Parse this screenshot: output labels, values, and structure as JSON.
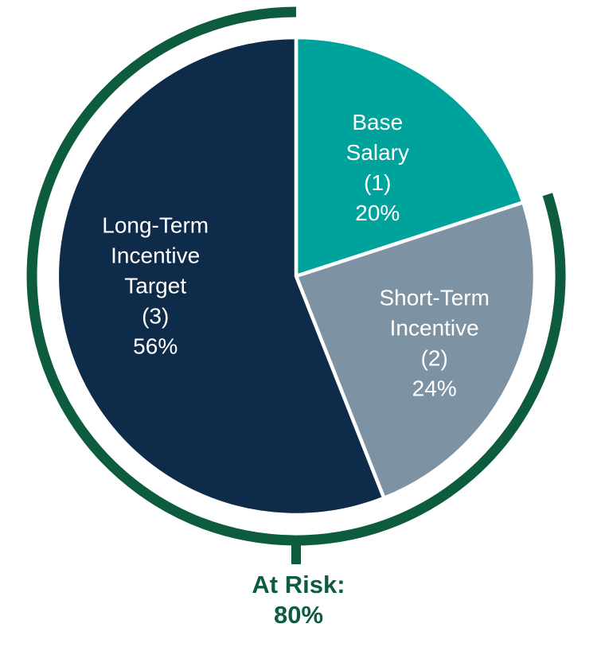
{
  "chart_data": {
    "type": "pie",
    "title": "",
    "start_angle_deg": 0,
    "direction": "clockwise",
    "slice_border_color": "#ffffff",
    "slices": [
      {
        "name": "Base Salary (1)",
        "value": 20,
        "color": "#00a39b",
        "label_lines": [
          "Base",
          "Salary",
          "(1)",
          "20%"
        ]
      },
      {
        "name": "Short-Term Incentive (2)",
        "value": 24,
        "color": "#7d92a3",
        "label_lines": [
          "Short-Term",
          "Incentive",
          "(2)",
          "24%"
        ]
      },
      {
        "name": "Long-Term Incentive Target (3)",
        "value": 56,
        "color": "#0e2b4a",
        "label_lines": [
          "Long-Term",
          "Incentive",
          "Target",
          "(3)",
          "56%"
        ]
      }
    ],
    "annotation_arc": {
      "covers_slices": [
        "Short-Term Incentive (2)",
        "Long-Term Incentive Target (3)"
      ],
      "span_percent": 80,
      "color": "#0d5c3e",
      "label_lines": [
        "At Risk:",
        "80%"
      ]
    }
  }
}
